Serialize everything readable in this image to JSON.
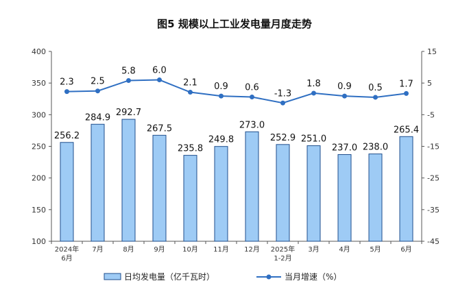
{
  "chart_data": {
    "type": "bar",
    "title": "图5  规模以上工业发电量月度走势",
    "categories": [
      [
        "2024年",
        "6月"
      ],
      [
        "7月"
      ],
      [
        "8月"
      ],
      [
        "9月"
      ],
      [
        "10月"
      ],
      [
        "11月"
      ],
      [
        "12月"
      ],
      [
        "2025年",
        "1-2月"
      ],
      [
        "3月"
      ],
      [
        "4月"
      ],
      [
        "5月"
      ],
      [
        "6月"
      ]
    ],
    "series": [
      {
        "name": "日均发电量（亿千瓦时）",
        "type": "bar",
        "axis": "left",
        "values": [
          256.2,
          284.9,
          292.7,
          267.5,
          235.8,
          249.8,
          273.0,
          252.9,
          251.0,
          237.0,
          238.0,
          265.4
        ],
        "labels": [
          "256.2",
          "284.9",
          "292.7",
          "267.5",
          "235.8",
          "249.8",
          "273.0",
          "252.9",
          "251.0",
          "237.0",
          "238.0",
          "265.4"
        ]
      },
      {
        "name": "当月增速（%）",
        "type": "line",
        "axis": "right",
        "values": [
          2.3,
          2.5,
          5.8,
          6.0,
          2.1,
          0.9,
          0.6,
          -1.3,
          1.8,
          0.9,
          0.5,
          1.7
        ],
        "labels": [
          "2.3",
          "2.5",
          "5.8",
          "6.0",
          "2.1",
          "0.9",
          "0.6",
          "-1.3",
          "1.8",
          "0.9",
          "0.5",
          "1.7"
        ]
      }
    ],
    "y_left": {
      "min": 100,
      "max": 400,
      "ticks": [
        "100",
        "150",
        "200",
        "250",
        "300",
        "350",
        "400"
      ]
    },
    "y_right": {
      "min": -45,
      "max": 15,
      "ticks": [
        "-45",
        "-35",
        "-25",
        "-15",
        "-5",
        "5",
        "15"
      ]
    },
    "grid": false,
    "legend_position": "bottom",
    "colors": {
      "bar_fill": "#9ecbf5",
      "bar_stroke": "#1f4e8c",
      "line": "#2f6fc2",
      "axis": "#555555"
    }
  }
}
